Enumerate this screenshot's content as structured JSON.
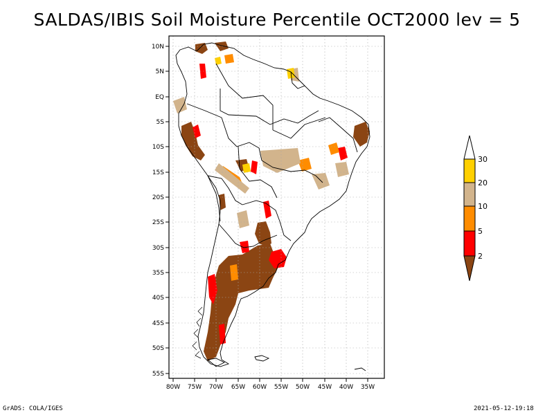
{
  "title": "SALDAS/IBIS Soil Moisture Percentile OCT2000 lev = 5",
  "footer": {
    "left": "GrADS: COLA/IGES",
    "right": "2021-05-12-19:18"
  },
  "axes": {
    "x_ticks": [
      "80W",
      "75W",
      "70W",
      "65W",
      "60W",
      "55W",
      "50W",
      "45W",
      "40W",
      "35W"
    ],
    "y_ticks": [
      "10N",
      "5N",
      "EQ",
      "5S",
      "10S",
      "15S",
      "20S",
      "25S",
      "30S",
      "35S",
      "40S",
      "45S",
      "50S",
      "55S"
    ],
    "lon_range": [
      -80,
      -34
    ],
    "lat_range": [
      11,
      -55
    ]
  },
  "colorbar": {
    "labels": [
      "30",
      "20",
      "10",
      "5",
      "2"
    ],
    "colors": {
      "above_30": "#ffffff",
      "20_30": "#ffd000",
      "10_20": "#d2b48c",
      "5_10": "#ff8c00",
      "2_5": "#ff0000",
      "below_2": "#8b4513"
    }
  },
  "map_colors": {
    "brown": "#8b4513",
    "red": "#ff0000",
    "orange": "#ff8c00",
    "tan": "#d2b48c",
    "yellow": "#ffd000"
  }
}
